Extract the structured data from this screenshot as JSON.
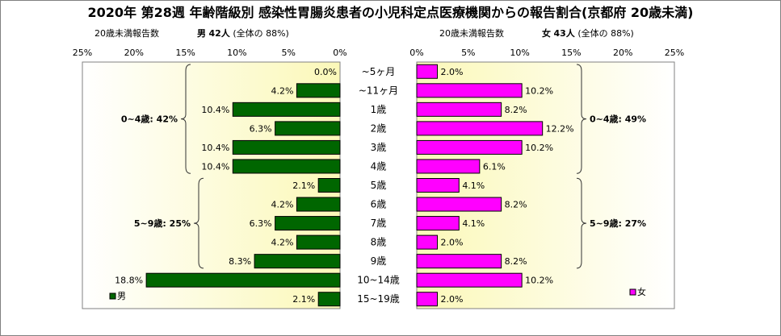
{
  "title": "2020年 第28週 年齢階級別 感染性胃腸炎患者の小児科定点医療機関からの報告割合(京都府 20歳未満)",
  "left_header": {
    "label": "20歳未満報告数",
    "sex": "男",
    "count": "42人",
    "share": "(全体の  88%)"
  },
  "right_header": {
    "label": "20歳未満報告数",
    "sex": "女",
    "count": "43人",
    "share": "(全体の  88%)"
  },
  "chart_data": [
    {
      "type": "bar",
      "orientation": "horizontal",
      "side": "left",
      "categories": [
        "~5ヶ月",
        "~11ヶ月",
        "1歳",
        "2歳",
        "3歳",
        "4歳",
        "5歳",
        "6歳",
        "7歳",
        "8歳",
        "9歳",
        "10~14歳",
        "15~19歳"
      ],
      "series": [
        {
          "name": "男",
          "values": [
            0.0,
            4.2,
            10.4,
            6.3,
            10.4,
            10.4,
            2.1,
            4.2,
            6.3,
            4.2,
            8.3,
            18.8,
            2.1
          ],
          "color": "#006600"
        }
      ],
      "data_labels": [
        "0.0%",
        "4.2%",
        "10.4%",
        "6.3%",
        "10.4%",
        "10.4%",
        "2.1%",
        "4.2%",
        "6.3%",
        "4.2%",
        "8.3%",
        "18.8%",
        "2.1%"
      ],
      "xlim": [
        0,
        25
      ],
      "xticks": [
        "25%",
        "20%",
        "15%",
        "10%",
        "5%",
        "0%"
      ],
      "legend": "bottom-left",
      "brackets": [
        {
          "label": "0~4歳: 42%",
          "from": "~5ヶ月",
          "to": "4歳"
        },
        {
          "label": "5~9歳: 25%",
          "from": "5歳",
          "to": "9歳"
        }
      ]
    },
    {
      "type": "bar",
      "orientation": "horizontal",
      "side": "right",
      "categories": [
        "~5ヶ月",
        "~11ヶ月",
        "1歳",
        "2歳",
        "3歳",
        "4歳",
        "5歳",
        "6歳",
        "7歳",
        "8歳",
        "9歳",
        "10~14歳",
        "15~19歳"
      ],
      "series": [
        {
          "name": "女",
          "values": [
            2.0,
            10.2,
            8.2,
            12.2,
            10.2,
            6.1,
            4.1,
            8.2,
            4.1,
            2.0,
            8.2,
            10.2,
            2.0
          ],
          "color": "#ff00ff"
        }
      ],
      "data_labels": [
        "2.0%",
        "10.2%",
        "8.2%",
        "12.2%",
        "10.2%",
        "6.1%",
        "4.1%",
        "8.2%",
        "4.1%",
        "2.0%",
        "8.2%",
        "10.2%",
        "2.0%"
      ],
      "xlim": [
        0,
        25
      ],
      "xticks": [
        "0%",
        "5%",
        "10%",
        "15%",
        "20%",
        "25%"
      ],
      "legend": "bottom-right",
      "brackets": [
        {
          "label": "0~4歳: 49%",
          "from": "~5ヶ月",
          "to": "4歳"
        },
        {
          "label": "5~9歳: 27%",
          "from": "5歳",
          "to": "9歳"
        }
      ]
    }
  ]
}
